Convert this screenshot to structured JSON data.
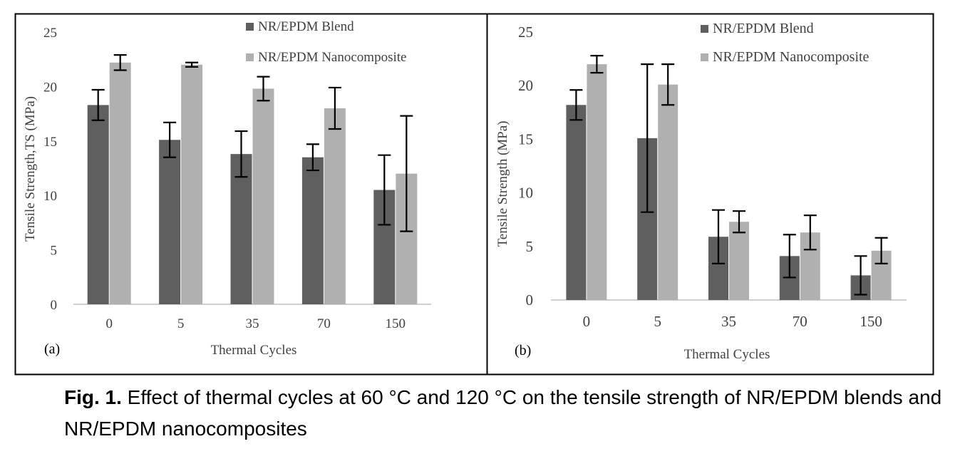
{
  "colors": {
    "blend": "#5f5f5f",
    "nano": "#b0b0b0",
    "frame": "#000000",
    "axis": "#bfbfbf",
    "text": "#404040"
  },
  "caption": {
    "label": "Fig. 1.",
    "text": " Effect of thermal cycles at 60 °C and 120 °C on the tensile strength of NR/EPDM blends and NR/EPDM nanocomposites"
  },
  "chart_data": [
    {
      "type": "bar",
      "panel_label": "(a)",
      "categories": [
        "0",
        "5",
        "35",
        "70",
        "150"
      ],
      "xlabel": "Thermal Cycles",
      "ylabel": "Tensile Strength,TS (MPa)",
      "ylim": [
        0,
        25
      ],
      "yticks": [
        "0",
        "5",
        "10",
        "15",
        "20",
        "25"
      ],
      "grid": false,
      "legend_position": "top-right",
      "series": [
        {
          "name": "NR/EPDM Blend",
          "values": [
            18.3,
            15.1,
            13.8,
            13.5,
            10.5
          ],
          "errors": [
            1.4,
            1.6,
            2.1,
            1.2,
            3.2
          ]
        },
        {
          "name": "NR/EPDM Nanocomposite",
          "values": [
            22.2,
            22.0,
            19.8,
            18.0,
            12.0
          ],
          "errors": [
            0.7,
            0.2,
            1.1,
            1.9,
            5.3
          ]
        }
      ]
    },
    {
      "type": "bar",
      "panel_label": "(b)",
      "categories": [
        "0",
        "5",
        "35",
        "70",
        "150"
      ],
      "xlabel": "Thermal Cycles",
      "ylabel": "Tensile Strength (MPa)",
      "ylim": [
        0,
        25
      ],
      "yticks": [
        "0",
        "5",
        "10",
        "15",
        "20",
        "25"
      ],
      "grid": false,
      "legend_position": "top-right",
      "series": [
        {
          "name": "NR/EPDM Blend",
          "values": [
            18.2,
            15.1,
            5.9,
            4.1,
            2.3
          ],
          "errors": [
            1.4,
            6.9,
            2.5,
            2.0,
            1.8
          ]
        },
        {
          "name": "NR/EPDM Nanocomposite",
          "values": [
            22.0,
            20.1,
            7.3,
            6.3,
            4.6
          ],
          "errors": [
            0.8,
            1.9,
            1.0,
            1.6,
            1.2
          ]
        }
      ]
    }
  ]
}
